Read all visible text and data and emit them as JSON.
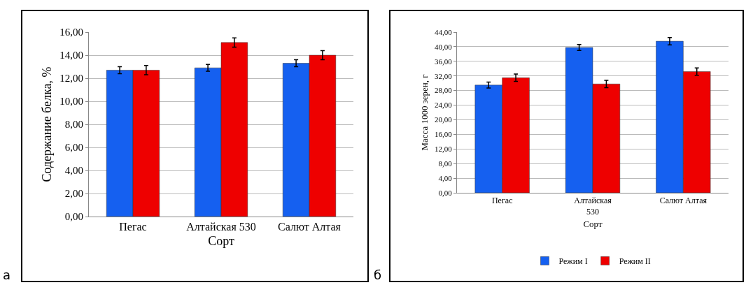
{
  "chart_data": [
    {
      "type": "bar",
      "xlabel": "Сорт",
      "ylabel": "Содержание белка, %",
      "annotations": [
        "а"
      ],
      "categories": [
        "Пегас",
        "Алтайская 530",
        "Салют Алтая"
      ],
      "series": [
        {
          "color": "#1560f0",
          "values": [
            12.7,
            12.9,
            13.3
          ],
          "errors": [
            0.3,
            0.3,
            0.3
          ]
        },
        {
          "color": "#ee0000",
          "values": [
            12.7,
            15.1,
            14.0
          ],
          "errors": [
            0.4,
            0.4,
            0.4
          ]
        }
      ],
      "ylim": [
        0,
        16
      ],
      "yticks": [
        {
          "value": 0,
          "label": "0,00"
        },
        {
          "value": 2,
          "label": "2,00"
        },
        {
          "value": 4,
          "label": "4,00"
        },
        {
          "value": 6,
          "label": "6,00"
        },
        {
          "value": 8,
          "label": "8,00"
        },
        {
          "value": 10,
          "label": "10,00"
        },
        {
          "value": 12,
          "label": "12,00"
        },
        {
          "value": 14,
          "label": "14,00"
        },
        {
          "value": 16,
          "label": "16,00"
        }
      ],
      "grid": "y",
      "legend": false
    },
    {
      "type": "bar",
      "xlabel": "Сорт",
      "ylabel": "Масса 1000 зерен, г",
      "annotations": [
        "б"
      ],
      "categories": [
        "Пегас",
        "Алтайская\n530",
        "Салют Алтая"
      ],
      "series": [
        {
          "name": "Режим I",
          "color": "#1560f0",
          "values": [
            29.5,
            39.8,
            41.5
          ],
          "errors": [
            0.8,
            0.8,
            1.0
          ]
        },
        {
          "name": "Режим II",
          "color": "#ee0000",
          "values": [
            31.5,
            29.8,
            33.2
          ],
          "errors": [
            1.0,
            1.0,
            1.0
          ]
        }
      ],
      "ylim": [
        0,
        44
      ],
      "yticks": [
        {
          "value": 0,
          "label": "0,00"
        },
        {
          "value": 4,
          "label": "4,00"
        },
        {
          "value": 8,
          "label": "8,00"
        },
        {
          "value": 12,
          "label": "12,00"
        },
        {
          "value": 16,
          "label": "16,00"
        },
        {
          "value": 20,
          "label": "20,00"
        },
        {
          "value": 24,
          "label": "24,00"
        },
        {
          "value": 28,
          "label": "28,00"
        },
        {
          "value": 32,
          "label": "32,00"
        },
        {
          "value": 36,
          "label": "36,00"
        },
        {
          "value": 40,
          "label": "40,00"
        },
        {
          "value": 44,
          "label": "44,00"
        }
      ],
      "grid": "y",
      "legend": "bottom"
    }
  ]
}
